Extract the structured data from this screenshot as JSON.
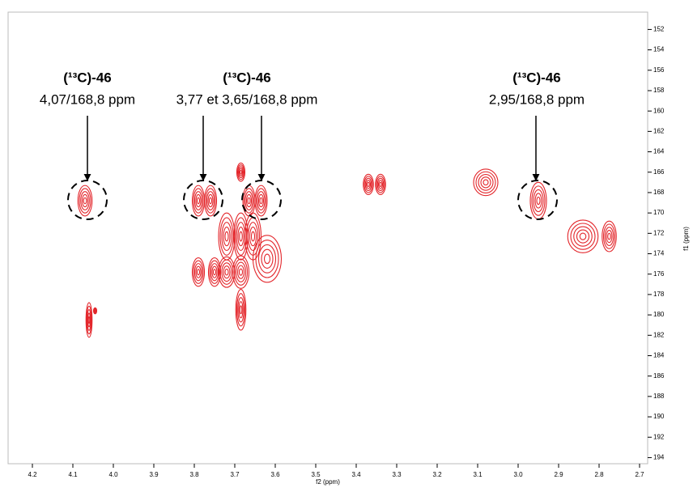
{
  "chart_data": {
    "type": "contour",
    "x_label": "f2 (ppm)",
    "y_label": "f1 (ppm)",
    "xlim": [
      4.26,
      2.68
    ],
    "ylim": [
      150.3,
      194.6
    ],
    "xticks": [
      4.2,
      4.1,
      {
        "value": 4,
        "label": "4.0"
      },
      3.9,
      3.8,
      3.7,
      3.6,
      3.5,
      3.4,
      3.3,
      3.2,
      3.1,
      {
        "value": 3,
        "label": "3.0"
      },
      2.9,
      2.8,
      2.7
    ],
    "yticks": [
      152,
      154,
      156,
      158,
      160,
      162,
      164,
      166,
      168,
      170,
      172,
      174,
      176,
      178,
      180,
      182,
      184,
      186,
      188,
      190,
      192,
      194
    ],
    "color": "#e3262b",
    "peaks": {
      "x": [
        4.07,
        3.79,
        3.76,
        3.665,
        3.635,
        3.37,
        3.34,
        3.08,
        2.95,
        2.84,
        2.775,
        3.72,
        3.685,
        3.655,
        3.62,
        3.79,
        3.75,
        3.685,
        3.72,
        3.685,
        4.06,
        4.045,
        3.685
      ],
      "y": [
        168.8,
        168.8,
        168.8,
        168.8,
        168.8,
        167.2,
        167.2,
        167.0,
        168.8,
        172.3,
        172.3,
        172.3,
        172.3,
        172.3,
        174.5,
        175.8,
        175.8,
        175.8,
        175.8,
        179.5,
        180.5,
        179.6,
        166.0
      ],
      "w": [
        0.035,
        0.03,
        0.03,
        0.03,
        0.03,
        0.025,
        0.025,
        0.06,
        0.04,
        0.075,
        0.035,
        0.04,
        0.035,
        0.04,
        0.07,
        0.03,
        0.03,
        0.04,
        0.04,
        0.025,
        0.015,
        0.008,
        0.02
      ],
      "h": [
        3.0,
        3.0,
        3.0,
        3.0,
        3.0,
        2.0,
        2.0,
        2.6,
        3.6,
        3.2,
        3.0,
        4.6,
        4.6,
        4.6,
        4.6,
        2.8,
        2.8,
        3.2,
        3.0,
        4.0,
        3.4,
        0.6,
        1.8
      ]
    },
    "annotations": [
      {
        "label": "(¹³C)-46",
        "text": "4,07/168,8 ppm"
      },
      {
        "label": "(¹³C)-46",
        "text": "3,77 et 3,65/168,8 ppm"
      },
      {
        "label": "(¹³C)-46",
        "text": "2,95/168,8 ppm"
      }
    ]
  }
}
